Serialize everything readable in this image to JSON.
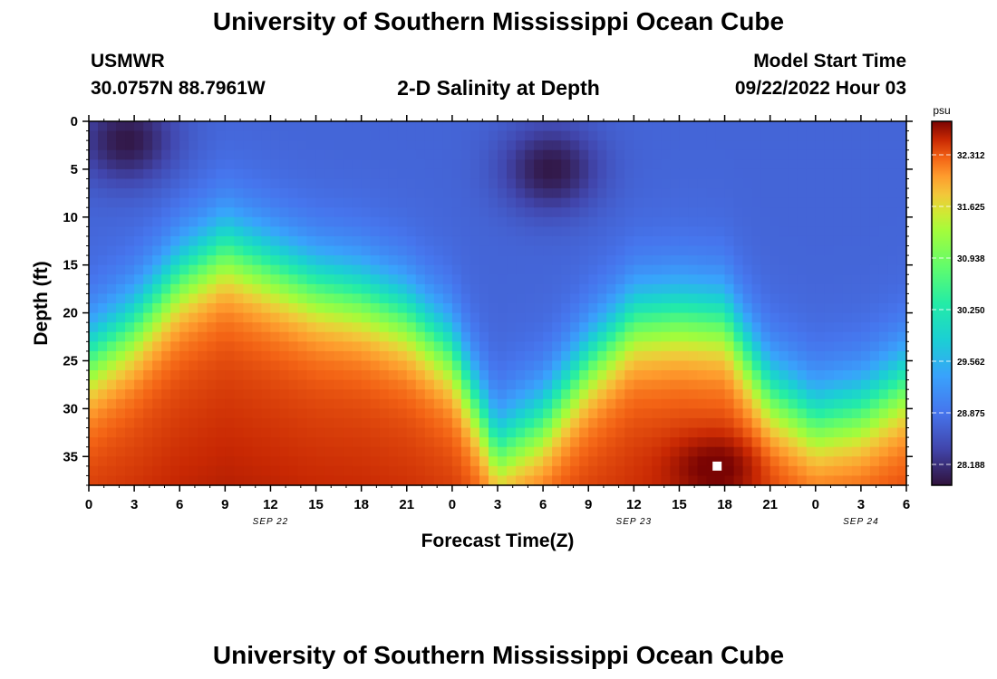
{
  "page": {
    "title": "University of Southern Mississippi Ocean Cube",
    "footer_title": "University of Southern Mississippi Ocean Cube",
    "station": "USMWR",
    "coords": "30.0757N  88.7961W",
    "subtitle": "2-D Salinity at Depth",
    "model_start_label": "Model Start Time",
    "model_start_value": "09/22/2022 Hour 03"
  },
  "chart_data": {
    "type": "heatmap",
    "xlabel": "Forecast Time(Z)",
    "ylabel": "Depth (ft)",
    "x_tick_labels": [
      "0",
      "3",
      "6",
      "9",
      "12",
      "15",
      "18",
      "21",
      "0",
      "3",
      "6",
      "9",
      "12",
      "15",
      "18",
      "21",
      "0",
      "3",
      "6"
    ],
    "date_labels": [
      {
        "text": "SEP 22",
        "tick_index": 4
      },
      {
        "text": "SEP 23",
        "tick_index": 12
      },
      {
        "text": "SEP 24",
        "tick_index": 17
      }
    ],
    "y_ticks": [
      0,
      5,
      10,
      15,
      20,
      25,
      30,
      35
    ],
    "ylim": [
      0,
      38
    ],
    "y_inverted": true,
    "colorbar": {
      "unit": "psu",
      "ticks": [
        "32.312",
        "31.625",
        "30.938",
        "30.250",
        "29.562",
        "28.875",
        "28.188"
      ],
      "min": 27.9,
      "max": 32.7
    },
    "marker": {
      "forecast_hour": 41.5,
      "depth_ft": 36,
      "color": "#ffffff"
    },
    "halocline_depth_ft": {
      "hours": [
        0,
        3,
        6,
        9,
        12,
        15,
        18,
        21,
        24,
        27,
        30,
        33,
        36,
        39,
        42,
        45,
        48,
        51,
        54
      ],
      "depth": [
        24.5,
        21,
        16,
        13,
        15,
        17,
        18,
        20,
        24,
        34,
        31,
        25,
        20.5,
        20,
        20.5,
        28,
        31,
        30,
        27
      ]
    },
    "fresh_water_cores": [
      {
        "hour": 2.5,
        "depth_ft": 2,
        "value": 28.0
      },
      {
        "hour": 30.5,
        "depth_ft": 5,
        "value": 28.0
      }
    ],
    "max_salinity": {
      "hour": 41.5,
      "depth_ft": 36,
      "value": 32.7
    }
  }
}
